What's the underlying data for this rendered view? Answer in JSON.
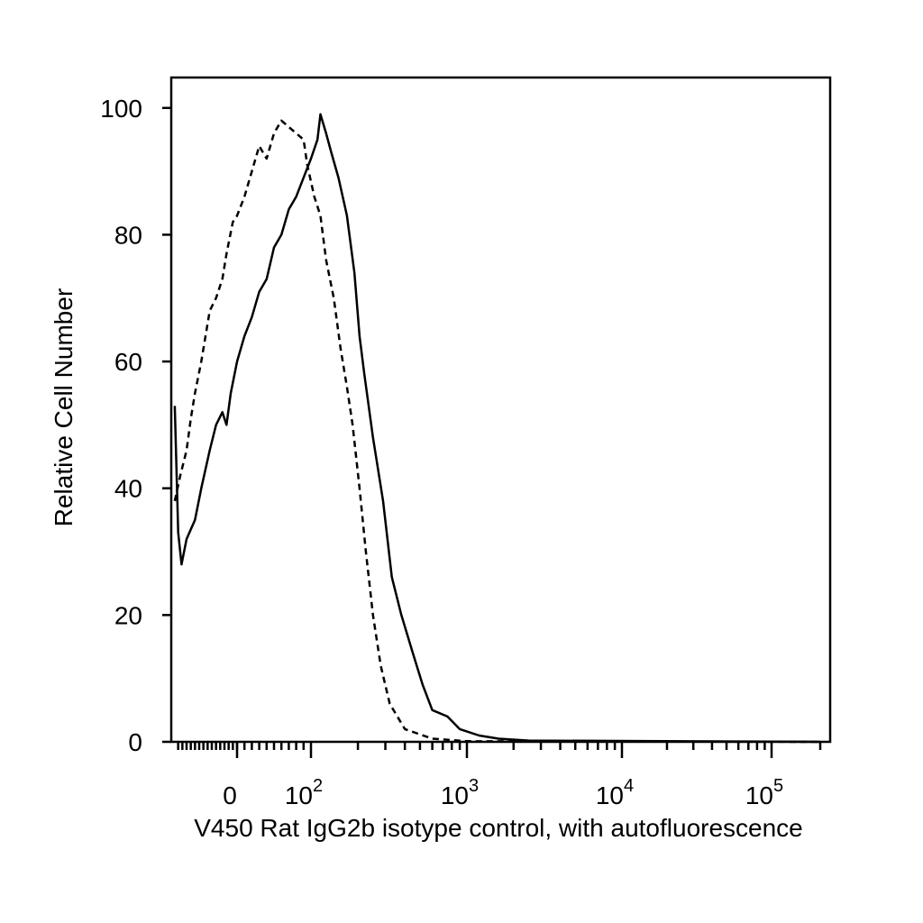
{
  "chart_data": {
    "type": "line",
    "title": "",
    "xlabel": "V450 Rat IgG2b isotype control, with autofluorescence",
    "ylabel": "Relative Cell Number",
    "x_scale": "biexponential",
    "xlim": [
      -150,
      200000
    ],
    "ylim": [
      0,
      105
    ],
    "y_ticks": [
      {
        "value": 0,
        "label": "0"
      },
      {
        "value": 20,
        "label": "20"
      },
      {
        "value": 40,
        "label": "40"
      },
      {
        "value": 60,
        "label": "60"
      },
      {
        "value": 80,
        "label": "80"
      },
      {
        "value": 100,
        "label": "100"
      }
    ],
    "x_ticks": [
      {
        "value": 0,
        "base": "0",
        "exp": ""
      },
      {
        "value": 100,
        "base": "10",
        "exp": "2"
      },
      {
        "value": 1000,
        "base": "10",
        "exp": "3"
      },
      {
        "value": 10000,
        "base": "10",
        "exp": "4"
      },
      {
        "value": 100000,
        "base": "10",
        "exp": "5"
      }
    ],
    "grid": false,
    "legend": "none",
    "series": [
      {
        "style": "dashed",
        "color": "#000000",
        "points": [
          [
            -148,
            38
          ],
          [
            -135,
            42
          ],
          [
            -120,
            46
          ],
          [
            -110,
            51
          ],
          [
            -100,
            55
          ],
          [
            -85,
            60
          ],
          [
            -75,
            64
          ],
          [
            -65,
            68
          ],
          [
            -50,
            70
          ],
          [
            -35,
            73
          ],
          [
            -25,
            77
          ],
          [
            -10,
            82
          ],
          [
            0,
            83
          ],
          [
            10,
            86
          ],
          [
            20,
            90
          ],
          [
            30,
            94
          ],
          [
            40,
            92
          ],
          [
            50,
            96
          ],
          [
            60,
            98
          ],
          [
            70,
            97
          ],
          [
            80,
            96
          ],
          [
            90,
            95
          ],
          [
            95,
            91
          ],
          [
            105,
            86
          ],
          [
            115,
            83
          ],
          [
            125,
            76
          ],
          [
            140,
            70
          ],
          [
            155,
            62
          ],
          [
            170,
            56
          ],
          [
            185,
            50
          ],
          [
            205,
            40
          ],
          [
            225,
            30
          ],
          [
            250,
            20
          ],
          [
            280,
            12
          ],
          [
            320,
            6
          ],
          [
            400,
            2
          ],
          [
            600,
            0.5
          ],
          [
            1000,
            0.1
          ],
          [
            200000,
            0
          ]
        ]
      },
      {
        "style": "solid",
        "color": "#000000",
        "points": [
          [
            -148,
            53
          ],
          [
            -140,
            33
          ],
          [
            -132,
            28
          ],
          [
            -120,
            32
          ],
          [
            -100,
            35
          ],
          [
            -85,
            40
          ],
          [
            -65,
            46
          ],
          [
            -50,
            50
          ],
          [
            -35,
            52
          ],
          [
            -25,
            50
          ],
          [
            -15,
            55
          ],
          [
            0,
            60
          ],
          [
            10,
            64
          ],
          [
            20,
            67
          ],
          [
            30,
            71
          ],
          [
            40,
            73
          ],
          [
            50,
            78
          ],
          [
            60,
            80
          ],
          [
            70,
            84
          ],
          [
            80,
            86
          ],
          [
            90,
            89
          ],
          [
            100,
            92
          ],
          [
            110,
            95
          ],
          [
            115,
            99
          ],
          [
            125,
            96
          ],
          [
            135,
            93
          ],
          [
            150,
            89
          ],
          [
            170,
            83
          ],
          [
            190,
            74
          ],
          [
            205,
            64
          ],
          [
            220,
            58
          ],
          [
            250,
            48
          ],
          [
            290,
            38
          ],
          [
            330,
            26
          ],
          [
            380,
            20
          ],
          [
            450,
            14
          ],
          [
            520,
            9
          ],
          [
            600,
            5
          ],
          [
            750,
            4
          ],
          [
            900,
            2
          ],
          [
            1200,
            1
          ],
          [
            1600,
            0.5
          ],
          [
            2500,
            0.2
          ],
          [
            200000,
            0
          ]
        ]
      }
    ]
  }
}
